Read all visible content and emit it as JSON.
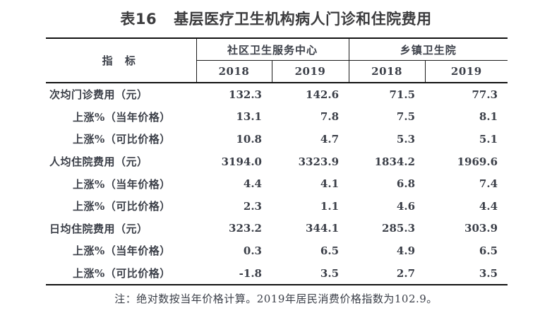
{
  "title": {
    "tag": "表16",
    "text": "基层医疗卫生机构病人门诊和住院费用"
  },
  "table": {
    "indicator_header": "指 标",
    "groups": [
      {
        "label": "社区卫生服务中心",
        "years": [
          "2018",
          "2019"
        ]
      },
      {
        "label": "乡镇卫生院",
        "years": [
          "2018",
          "2019"
        ]
      }
    ],
    "rows": [
      {
        "label": "次均门诊费用（元）",
        "values": [
          "132.3",
          "142.6",
          "71.5",
          "77.3"
        ]
      },
      {
        "label": "上涨%（当年价格）",
        "values": [
          "13.1",
          "7.8",
          "7.5",
          "8.1"
        ]
      },
      {
        "label": "上涨%（可比价格）",
        "values": [
          "10.8",
          "4.7",
          "5.3",
          "5.1"
        ]
      },
      {
        "label": "人均住院费用（元）",
        "values": [
          "3194.0",
          "3323.9",
          "1834.2",
          "1969.6"
        ]
      },
      {
        "label": "上涨%（当年价格）",
        "values": [
          "4.4",
          "4.1",
          "6.8",
          "7.4"
        ]
      },
      {
        "label": "上涨%（可比价格）",
        "values": [
          "2.3",
          "1.1",
          "4.6",
          "4.4"
        ]
      },
      {
        "label": "日均住院费用（元）",
        "values": [
          "323.2",
          "344.1",
          "285.3",
          "303.9"
        ]
      },
      {
        "label": "上涨%（当年价格）",
        "values": [
          "0.3",
          "6.5",
          "4.9",
          "6.5"
        ]
      },
      {
        "label": "上涨%（可比价格）",
        "values": [
          "-1.8",
          "3.5",
          "2.7",
          "3.5"
        ]
      }
    ]
  },
  "footnote": "注：绝对数按当年价格计算。2019年居民消费价格指数为102.9。",
  "colors": {
    "background": "#ffffff",
    "text": "#3b3f48",
    "title_text": "#3c3c3e",
    "border": "#111111"
  }
}
